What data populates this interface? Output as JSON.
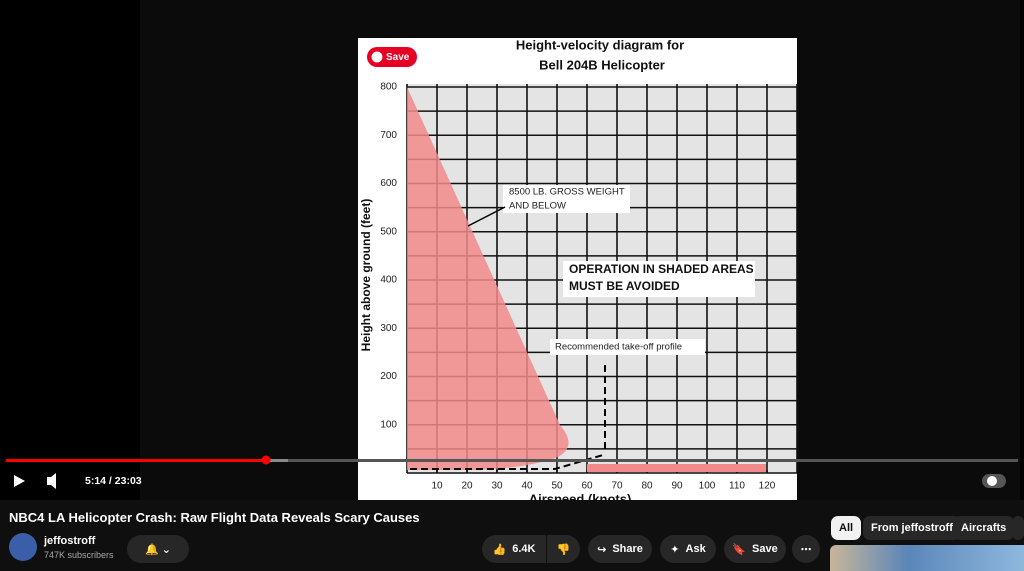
{
  "video": {
    "chart": {
      "title": [
        "Height-velocity diagram for",
        "Bell 204B Helicopter"
      ],
      "xlabel": "Airspeed (knots)",
      "ylabel": "Height above ground (feet)",
      "xlim": [
        0,
        130
      ],
      "ylim": [
        0,
        800
      ],
      "xticks": [
        10,
        20,
        30,
        40,
        50,
        60,
        70,
        80,
        90,
        100,
        110,
        120
      ],
      "yticks": [
        100,
        200,
        300,
        400,
        500,
        600,
        700,
        800
      ],
      "weight_note": [
        "8500 LB. GROSS WEIGHT",
        "AND BELOW"
      ],
      "warning": [
        "OPERATION IN SHADED AREAS",
        "MUST BE AVOIDED"
      ],
      "profile_note": "Recommended take-off profile"
    },
    "pin_button": "Save",
    "time": "5:14 / 23:03"
  },
  "title": "NBC4 LA Helicopter Crash: Raw Flight Data Reveals Scary Causes",
  "channel": {
    "name": "jeffostroff",
    "subscribers": "747K subscribers"
  },
  "actions": {
    "likes": "6.4K",
    "share": "Share",
    "ask": "Ask",
    "save": "Save"
  },
  "chips": [
    "All",
    "From jeffostroff",
    "Aircrafts"
  ]
}
